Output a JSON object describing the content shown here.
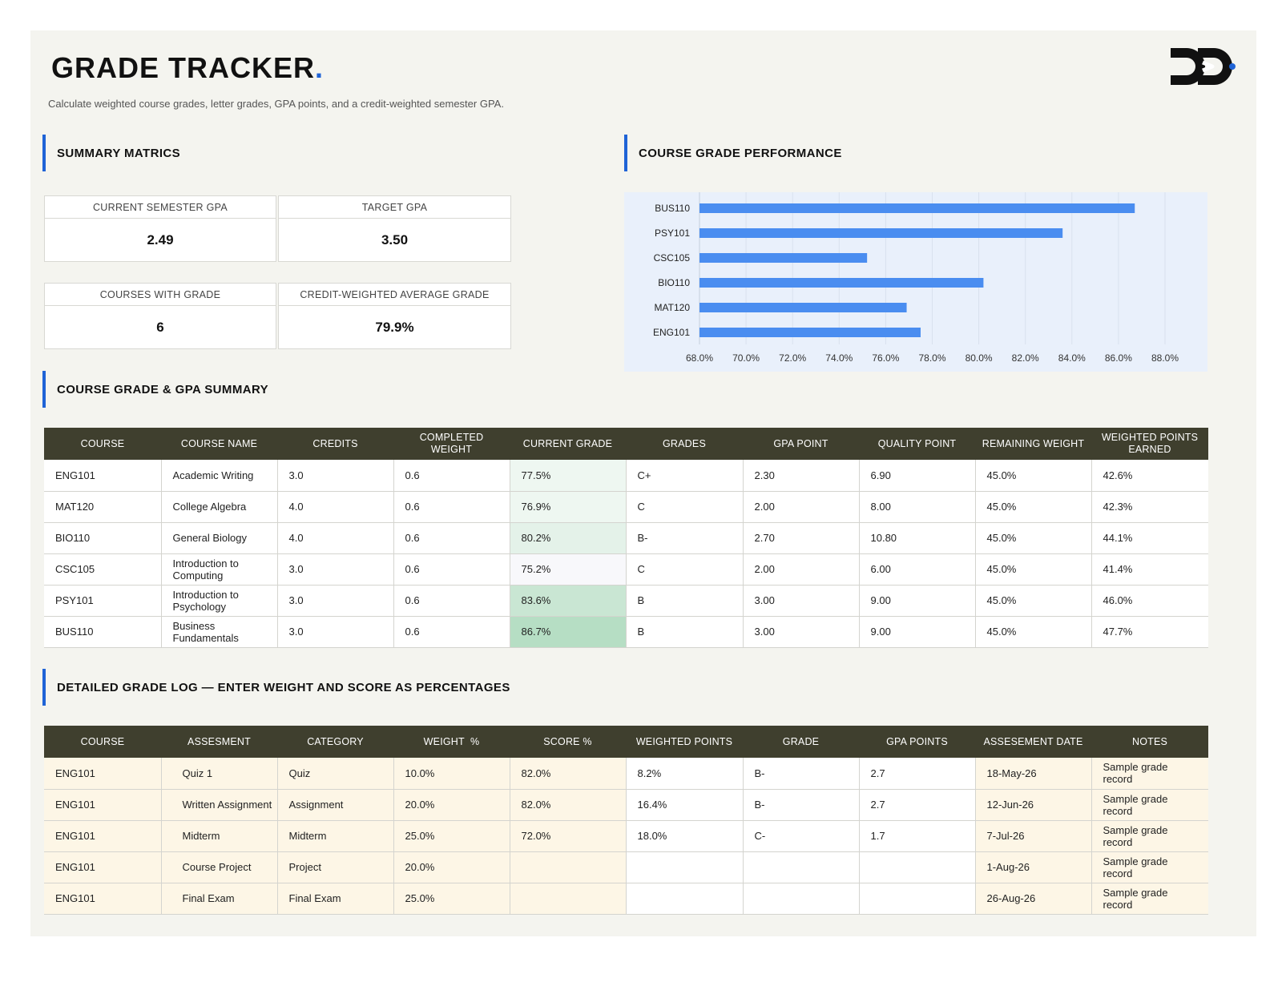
{
  "header": {
    "title": "GRADE TRACKER",
    "title_dot": ".",
    "subtitle": "Calculate weighted course grades, letter grades, GPA points, and a credit-weighted semester GPA."
  },
  "summary": {
    "heading": "SUMMARY MATRICS",
    "metrics": [
      {
        "label": "CURRENT SEMESTER GPA",
        "value": "2.49"
      },
      {
        "label": "TARGET GPA",
        "value": "3.50"
      },
      {
        "label": "COURSES WITH GRADE",
        "value": "6"
      },
      {
        "label": "CREDIT-WEIGHTED AVERAGE GRADE",
        "value": "79.9%"
      }
    ]
  },
  "performance": {
    "heading": "COURSE GRADE PERFORMANCE"
  },
  "chart_data": {
    "type": "bar",
    "orientation": "horizontal",
    "title": "",
    "categories": [
      "BUS110",
      "PSY101",
      "CSC105",
      "BIO110",
      "MAT120",
      "ENG101"
    ],
    "values": [
      86.7,
      83.6,
      75.2,
      80.2,
      76.9,
      77.5
    ],
    "xlim": [
      68,
      88
    ],
    "xticks": [
      "68.0%",
      "70.0%",
      "72.0%",
      "74.0%",
      "76.0%",
      "78.0%",
      "80.0%",
      "82.0%",
      "84.0%",
      "86.0%",
      "88.0%"
    ],
    "grid": true,
    "bar_color": "#4a8df0"
  },
  "course_summary": {
    "heading": "COURSE GRADE & GPA SUMMARY",
    "columns": [
      "COURSE",
      "COURSE NAME",
      "CREDITS",
      "COMPLETED WEIGHT",
      "CURRENT GRADE",
      "GRADES",
      "GPA POINT",
      "QUALITY POINT",
      "REMAINING WEIGHT",
      "WEIGHTED POINTS EARNED"
    ],
    "rows": [
      [
        "ENG101",
        "Academic Writing",
        "3.0",
        "0.6",
        "77.5%",
        "C+",
        "2.30",
        "6.90",
        "45.0%",
        "42.6%"
      ],
      [
        "MAT120",
        "College Algebra",
        "4.0",
        "0.6",
        "76.9%",
        "C",
        "2.00",
        "8.00",
        "45.0%",
        "42.3%"
      ],
      [
        "BIO110",
        "General Biology",
        "4.0",
        "0.6",
        "80.2%",
        "B-",
        "2.70",
        "10.80",
        "45.0%",
        "44.1%"
      ],
      [
        "CSC105",
        "Introduction to Computing",
        "3.0",
        "0.6",
        "75.2%",
        "C",
        "2.00",
        "6.00",
        "45.0%",
        "41.4%"
      ],
      [
        "PSY101",
        "Introduction to Psychology",
        "3.0",
        "0.6",
        "83.6%",
        "B",
        "3.00",
        "9.00",
        "45.0%",
        "46.0%"
      ],
      [
        "BUS110",
        "Business Fundamentals",
        "3.0",
        "0.6",
        "86.7%",
        "B",
        "3.00",
        "9.00",
        "45.0%",
        "47.7%"
      ]
    ]
  },
  "grade_log": {
    "heading": "DETAILED GRADE LOG — ENTER WEIGHT AND SCORE AS PERCENTAGES",
    "columns": [
      "COURSE",
      "ASSESMENT",
      "CATEGORY",
      "WEIGHT  %",
      "SCORE %",
      "WEIGHTED POINTS",
      "GRADE",
      "GPA POINTS",
      "ASSESEMENT DATE",
      "NOTES"
    ],
    "rows": [
      [
        "ENG101",
        "Quiz 1",
        "Quiz",
        "10.0%",
        "82.0%",
        "8.2%",
        "B-",
        "2.7",
        "18-May-26",
        "Sample grade record"
      ],
      [
        "ENG101",
        "Written Assignment",
        "Assignment",
        "20.0%",
        "82.0%",
        "16.4%",
        "B-",
        "2.7",
        "12-Jun-26",
        "Sample grade record"
      ],
      [
        "ENG101",
        "Midterm",
        "Midterm",
        "25.0%",
        "72.0%",
        "18.0%",
        "C-",
        "1.7",
        "7-Jul-26",
        "Sample grade record"
      ],
      [
        "ENG101",
        "Course Project",
        "Project",
        "20.0%",
        "",
        "",
        "",
        "",
        "1-Aug-26",
        "Sample grade record"
      ],
      [
        "ENG101",
        "Final Exam",
        "Final Exam",
        "25.0%",
        "",
        "",
        "",
        "",
        "26-Aug-26",
        "Sample grade record"
      ]
    ]
  },
  "colors": {
    "accent": "#1f63d6",
    "table_header": "#3f3f2e",
    "sheet_bg": "#f4f4ef",
    "log_row_bg": "#fdf6e6"
  }
}
